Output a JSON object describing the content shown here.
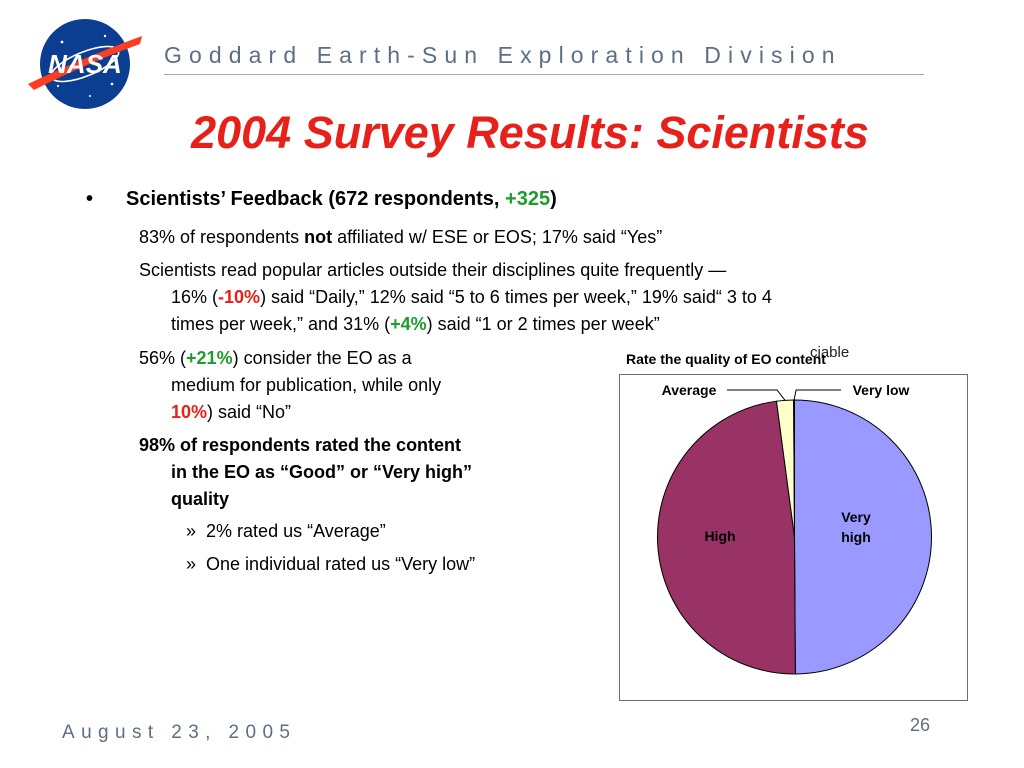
{
  "header": {
    "division": "Goddard Earth-Sun Exploration Division",
    "title": "2004 Survey Results:  Scientists"
  },
  "logo": {
    "text": "NASA"
  },
  "bullet": {
    "label_pre": "Scientists’ Feedback (672 respondents, ",
    "delta": "+325",
    "label_post": ")"
  },
  "para1": {
    "pre": "83% of respondents ",
    "bold": "not",
    "post": " affiliated w/ ESE or EOS; 17% said “Yes”"
  },
  "para2": {
    "line1": "Scientists read popular articles outside their disciplines quite frequently —",
    "l2_a": "16% (",
    "l2_delta": "-10%",
    "l2_b": ") said “Daily,” 12% said “5 to 6 times per week,” 19% said“ 3 to 4",
    "l3_a": "times per week,” and 31% (",
    "l3_delta": "+4%",
    "l3_b": ") said “1 or 2 times per week”"
  },
  "para3": {
    "l1_a": "56% (",
    "l1_delta": "+21%",
    "l1_b": ") consider the EO as a",
    "line2": "medium for publication, while only",
    "l3_delta": "10%",
    "l3_b": ") said “No”"
  },
  "para4": {
    "line1": "98% of respondents rated the content",
    "line2": "in the EO as “Good” or “Very high”",
    "line3": "quality"
  },
  "sub_bullets": [
    {
      "marker": "»",
      "text": "2% rated us “Average”"
    },
    {
      "marker": "»",
      "text": "One individual rated us “Very low”"
    }
  ],
  "chart_data": {
    "type": "pie",
    "title": "Rate the quality of EO content",
    "subtitle": "ciable",
    "slices": [
      {
        "label": "Very high",
        "value": 49.9,
        "color": "#9999ff"
      },
      {
        "label": "High",
        "value": 48.0,
        "color": "#993366"
      },
      {
        "label": "Average",
        "value": 2.0,
        "color": "#ffffcc"
      },
      {
        "label": "Very low",
        "value": 0.1,
        "color": "#ccffff"
      }
    ]
  },
  "footer": {
    "date": "August 23, 2005",
    "page": "26"
  }
}
